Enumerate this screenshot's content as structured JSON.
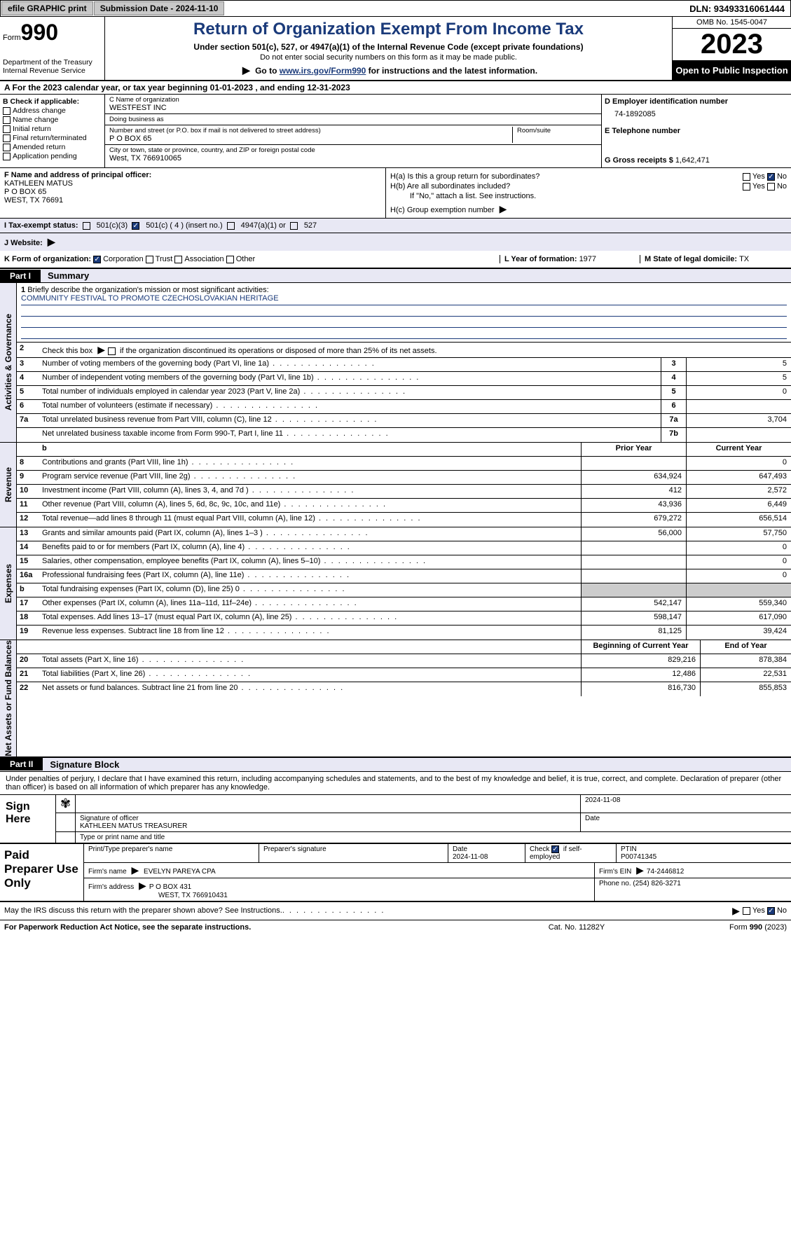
{
  "topbar": {
    "efile_btn": "efile GRAPHIC print",
    "submission_label": "Submission Date - 2024-11-10",
    "dln": "DLN: 93493316061444"
  },
  "header": {
    "form_label": "Form",
    "form_num": "990",
    "dept": "Department of the Treasury Internal Revenue Service",
    "title": "Return of Organization Exempt From Income Tax",
    "sub": "Under section 501(c), 527, or 4947(a)(1) of the Internal Revenue Code (except private foundations)",
    "sub2": "Do not enter social security numbers on this form as it may be made public.",
    "goto_pre": "Go to ",
    "goto_link": "www.irs.gov/Form990",
    "goto_post": " for instructions and the latest information.",
    "omb": "OMB No. 1545-0047",
    "year": "2023",
    "open": "Open to Public Inspection"
  },
  "a_row": "A For the 2023 calendar year, or tax year beginning 01-01-2023    , and ending 12-31-2023",
  "b": {
    "label": "B Check if applicable:",
    "items": [
      "Address change",
      "Name change",
      "Initial return",
      "Final return/terminated",
      "Amended return",
      "Application pending"
    ]
  },
  "c": {
    "name_label": "C Name of organization",
    "name": "WESTFEST INC",
    "dba_label": "Doing business as",
    "dba": "",
    "street_label": "Number and street (or P.O. box if mail is not delivered to street address)",
    "street": "P O BOX 65",
    "room_label": "Room/suite",
    "city_label": "City or town, state or province, country, and ZIP or foreign postal code",
    "city": "West, TX  766910065"
  },
  "d": {
    "label": "D Employer identification number",
    "value": "74-1892085"
  },
  "e": {
    "label": "E Telephone number",
    "value": ""
  },
  "g": {
    "label": "G Gross receipts $ ",
    "value": "1,642,471"
  },
  "f": {
    "label": "F  Name and address of principal officer:",
    "name": "KATHLEEN MATUS",
    "street": "P O BOX 65",
    "city": "WEST, TX  76691"
  },
  "h": {
    "a_label": "H(a)  Is this a group return for subordinates?",
    "b_label": "H(b)  Are all subordinates included?",
    "note": "If \"No,\" attach a list. See instructions.",
    "c_label": "H(c)  Group exemption number "
  },
  "i": {
    "label": "I   Tax-exempt status:",
    "opt1": "501(c)(3)",
    "opt2": "501(c) ( 4 ) (insert no.)",
    "opt3": "4947(a)(1) or",
    "opt4": "527"
  },
  "j": {
    "label": "J   Website: "
  },
  "k": {
    "label": "K Form of organization:",
    "opts": [
      "Corporation",
      "Trust",
      "Association",
      "Other"
    ]
  },
  "l": {
    "label": "L Year of formation: ",
    "value": "1977"
  },
  "m": {
    "label": "M State of legal domicile: ",
    "value": "TX"
  },
  "part1": {
    "tab": "Part I",
    "title": "Summary"
  },
  "summary": {
    "line1_label": "Briefly describe the organization's mission or most significant activities:",
    "line1_value": "COMMUNITY FESTIVAL TO PROMOTE CZECHOSLOVAKIAN HERITAGE",
    "line2": "Check this box      if the organization discontinued its operations or disposed of more than 25% of its net assets.",
    "rows_gov": [
      {
        "n": "3",
        "d": "Number of voting members of the governing body (Part VI, line 1a)",
        "b": "3",
        "v": "5"
      },
      {
        "n": "4",
        "d": "Number of independent voting members of the governing body (Part VI, line 1b)",
        "b": "4",
        "v": "5"
      },
      {
        "n": "5",
        "d": "Total number of individuals employed in calendar year 2023 (Part V, line 2a)",
        "b": "5",
        "v": "0"
      },
      {
        "n": "6",
        "d": "Total number of volunteers (estimate if necessary)",
        "b": "6",
        "v": ""
      },
      {
        "n": "7a",
        "d": "Total unrelated business revenue from Part VIII, column (C), line 12",
        "b": "7a",
        "v": "3,704"
      },
      {
        "n": "",
        "d": "Net unrelated business taxable income from Form 990-T, Part I, line 11",
        "b": "7b",
        "v": ""
      }
    ],
    "hdr_prior": "Prior Year",
    "hdr_curr": "Current Year",
    "rows_rev": [
      {
        "n": "8",
        "d": "Contributions and grants (Part VIII, line 1h)",
        "p": "",
        "c": "0"
      },
      {
        "n": "9",
        "d": "Program service revenue (Part VIII, line 2g)",
        "p": "634,924",
        "c": "647,493"
      },
      {
        "n": "10",
        "d": "Investment income (Part VIII, column (A), lines 3, 4, and 7d )",
        "p": "412",
        "c": "2,572"
      },
      {
        "n": "11",
        "d": "Other revenue (Part VIII, column (A), lines 5, 6d, 8c, 9c, 10c, and 11e)",
        "p": "43,936",
        "c": "6,449"
      },
      {
        "n": "12",
        "d": "Total revenue—add lines 8 through 11 (must equal Part VIII, column (A), line 12)",
        "p": "679,272",
        "c": "656,514"
      }
    ],
    "rows_exp": [
      {
        "n": "13",
        "d": "Grants and similar amounts paid (Part IX, column (A), lines 1–3 )",
        "p": "56,000",
        "c": "57,750"
      },
      {
        "n": "14",
        "d": "Benefits paid to or for members (Part IX, column (A), line 4)",
        "p": "",
        "c": "0"
      },
      {
        "n": "15",
        "d": "Salaries, other compensation, employee benefits (Part IX, column (A), lines 5–10)",
        "p": "",
        "c": "0"
      },
      {
        "n": "16a",
        "d": "Professional fundraising fees (Part IX, column (A), line 11e)",
        "p": "",
        "c": "0"
      },
      {
        "n": "b",
        "d": "Total fundraising expenses (Part IX, column (D), line 25) 0",
        "p": "shade",
        "c": "shade"
      },
      {
        "n": "17",
        "d": "Other expenses (Part IX, column (A), lines 11a–11d, 11f–24e)",
        "p": "542,147",
        "c": "559,340"
      },
      {
        "n": "18",
        "d": "Total expenses. Add lines 13–17 (must equal Part IX, column (A), line 25)",
        "p": "598,147",
        "c": "617,090"
      },
      {
        "n": "19",
        "d": "Revenue less expenses. Subtract line 18 from line 12",
        "p": "81,125",
        "c": "39,424"
      }
    ],
    "hdr_beg": "Beginning of Current Year",
    "hdr_end": "End of Year",
    "rows_net": [
      {
        "n": "20",
        "d": "Total assets (Part X, line 16)",
        "p": "829,216",
        "c": "878,384"
      },
      {
        "n": "21",
        "d": "Total liabilities (Part X, line 26)",
        "p": "12,486",
        "c": "22,531"
      },
      {
        "n": "22",
        "d": "Net assets or fund balances. Subtract line 21 from line 20",
        "p": "816,730",
        "c": "855,853"
      }
    ]
  },
  "vtabs": {
    "gov": "Activities & Governance",
    "rev": "Revenue",
    "exp": "Expenses",
    "net": "Net Assets or Fund Balances"
  },
  "part2": {
    "tab": "Part II",
    "title": "Signature Block"
  },
  "sig_text": "Under penalties of perjury, I declare that I have examined this return, including accompanying schedules and statements, and to the best of my knowledge and belief, it is true, correct, and complete. Declaration of preparer (other than officer) is based on all information of which preparer has any knowledge.",
  "sign": {
    "left": "Sign Here",
    "sig_label": "Signature of officer",
    "name": "KATHLEEN MATUS  TREASURER",
    "type_label": "Type or print name and title",
    "date_label": "Date",
    "date": "2024-11-08"
  },
  "prep": {
    "left": "Paid Preparer Use Only",
    "print_label": "Print/Type preparer's name",
    "sig_label": "Preparer's signature",
    "date_label": "Date",
    "date": "2024-11-08",
    "check_label": "Check        if self-employed",
    "ptin_label": "PTIN",
    "ptin": "P00741345",
    "firm_name_label": "Firm's name    ",
    "firm_name": "EVELYN PAREYA CPA",
    "firm_ein_label": "Firm's EIN  ",
    "firm_ein": "74-2446812",
    "firm_addr_label": "Firm's address ",
    "firm_addr": "P O BOX 431",
    "firm_city": "WEST, TX  766910431",
    "phone_label": "Phone no. ",
    "phone": "(254) 826-3271"
  },
  "may_irs": "May the IRS discuss this return with the preparer shown above? See Instructions.",
  "footer": {
    "l": "For Paperwork Reduction Act Notice, see the separate instructions.",
    "m": "Cat. No. 11282Y",
    "r_pre": "Form ",
    "r_bold": "990",
    "r_post": " (2023)"
  }
}
